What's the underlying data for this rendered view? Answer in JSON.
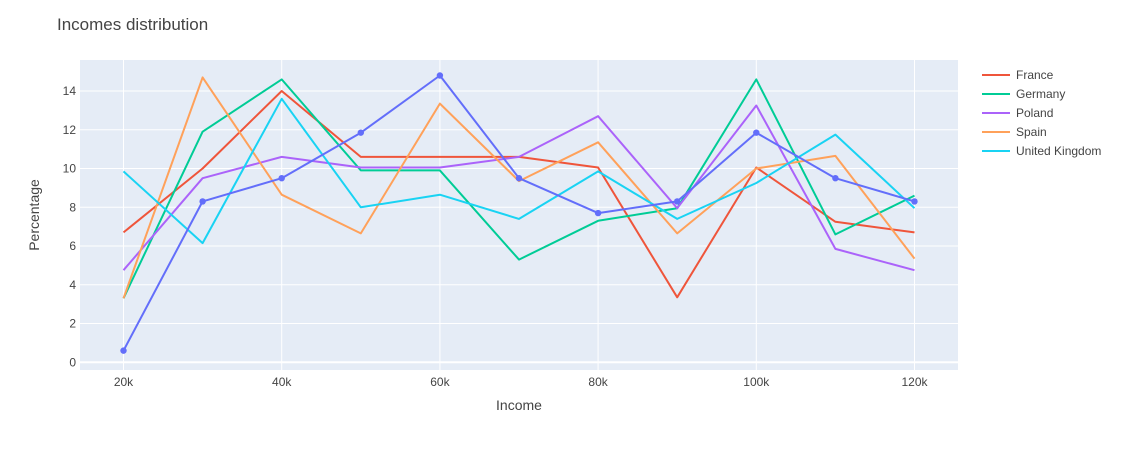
{
  "chart_data": {
    "type": "line",
    "title": "Incomes distribution",
    "xlabel": "Income",
    "ylabel": "Percentage",
    "x": [
      20000,
      30000,
      40000,
      50000,
      60000,
      70000,
      80000,
      90000,
      100000,
      110000,
      120000
    ],
    "xticks": [
      20000,
      40000,
      60000,
      80000,
      100000,
      120000
    ],
    "xtick_labels": [
      "20k",
      "40k",
      "60k",
      "80k",
      "100k",
      "120k"
    ],
    "xlim": [
      14500,
      125500
    ],
    "yticks": [
      0,
      2,
      4,
      6,
      8,
      10,
      12,
      14
    ],
    "ytick_labels": [
      "0",
      "2",
      "4",
      "6",
      "8",
      "10",
      "12",
      "14"
    ],
    "ylim": [
      -0.4,
      15.6
    ],
    "grid": true,
    "legend": "right",
    "series": [
      {
        "name": "France",
        "color": "#EF553B",
        "markers": false,
        "values": [
          6.7,
          10.0,
          14.0,
          10.6,
          10.6,
          10.6,
          10.05,
          3.35,
          10.05,
          7.25,
          6.7
        ]
      },
      {
        "name": "Germany",
        "color": "#00CC96",
        "markers": false,
        "values": [
          3.3,
          11.9,
          14.6,
          9.9,
          9.9,
          5.3,
          7.3,
          7.95,
          14.6,
          6.6,
          8.6
        ]
      },
      {
        "name": "Poland",
        "color": "#AB63FA",
        "markers": false,
        "values": [
          4.75,
          9.5,
          10.6,
          10.05,
          10.05,
          10.6,
          12.7,
          7.95,
          13.25,
          5.85,
          4.75
        ]
      },
      {
        "name": "Spain",
        "color": "#FFA15A",
        "markers": false,
        "values": [
          3.3,
          14.7,
          8.65,
          6.65,
          13.35,
          9.35,
          11.35,
          6.65,
          10.0,
          10.65,
          5.35
        ]
      },
      {
        "name": "United Kingdom",
        "color": "#19D3F3",
        "markers": false,
        "values": [
          9.85,
          6.15,
          13.6,
          8.0,
          8.65,
          7.4,
          9.85,
          7.4,
          9.25,
          11.75,
          7.95
        ]
      },
      {
        "name": "",
        "color": "#636EFA",
        "markers": true,
        "values": [
          0.6,
          8.3,
          9.5,
          11.85,
          14.8,
          9.5,
          7.7,
          8.3,
          11.85,
          9.5,
          8.3
        ]
      }
    ]
  }
}
